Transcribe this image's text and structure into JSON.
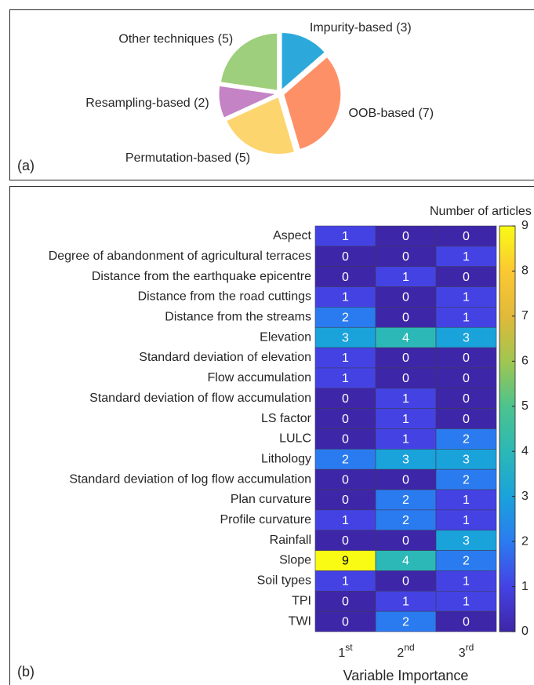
{
  "chart_data": [
    {
      "type": "pie",
      "panel_label": "(a)",
      "categories": [
        "Impurity-based (3)",
        "OOB-based (7)",
        "Permutation-based (5)",
        "Resampling-based (2)",
        "Other techniques (5)"
      ],
      "values": [
        3,
        7,
        5,
        2,
        5
      ],
      "colors": [
        "#2CA9DA",
        "#FE9068",
        "#FDD56F",
        "#C483C4",
        "#9DCF7C"
      ]
    },
    {
      "type": "heatmap",
      "panel_label": "(b)",
      "colorbar_label": "Number of articles",
      "xlabel": "Variable Importance",
      "rows": [
        "Aspect",
        "Degree of abandonment of agricultural terraces",
        "Distance from the earthquake epicentre",
        "Distance from the road cuttings",
        "Distance from the streams",
        "Elevation",
        "Standard deviation of elevation",
        "Flow accumulation",
        "Standard deviation of flow accumulation",
        "LS factor",
        "LULC",
        "Lithology",
        "Standard deviation of log flow accumulation",
        "Plan curvature",
        "Profile curvature",
        "Rainfall",
        "Slope",
        "Soil types",
        "TPI",
        "TWI"
      ],
      "columns": [
        {
          "base": "1",
          "sup": "st"
        },
        {
          "base": "2",
          "sup": "nd"
        },
        {
          "base": "3",
          "sup": "rd"
        }
      ],
      "values": [
        [
          1,
          0,
          0
        ],
        [
          0,
          0,
          1
        ],
        [
          0,
          1,
          0
        ],
        [
          1,
          0,
          1
        ],
        [
          2,
          0,
          1
        ],
        [
          3,
          4,
          3
        ],
        [
          1,
          0,
          0
        ],
        [
          1,
          0,
          0
        ],
        [
          0,
          1,
          0
        ],
        [
          0,
          1,
          0
        ],
        [
          0,
          1,
          2
        ],
        [
          2,
          3,
          3
        ],
        [
          0,
          0,
          2
        ],
        [
          0,
          2,
          1
        ],
        [
          1,
          2,
          1
        ],
        [
          0,
          0,
          3
        ],
        [
          9,
          4,
          2
        ],
        [
          1,
          0,
          1
        ],
        [
          0,
          1,
          1
        ],
        [
          0,
          2,
          0
        ]
      ],
      "clim": [
        0,
        9
      ],
      "cticks": [
        0,
        1,
        2,
        3,
        4,
        5,
        6,
        7,
        8,
        9
      ],
      "colormap": "parula"
    }
  ]
}
